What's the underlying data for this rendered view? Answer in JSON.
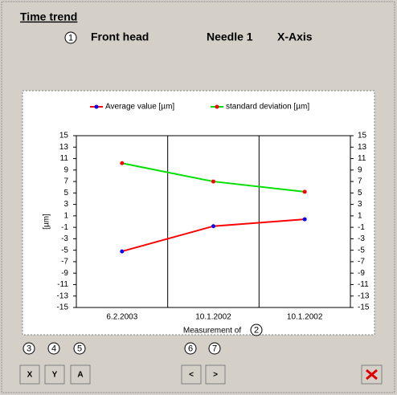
{
  "header": {
    "title": "Time trend",
    "callout": "1",
    "head": "Front head",
    "needle": "Needle 1",
    "axis": "X-Axis"
  },
  "chart_data": {
    "type": "line",
    "ylabel": "[µm]",
    "xlabel": "Measurement of",
    "xlabel_callout": "2",
    "categories": [
      "6.2.2003",
      "10.1.2002",
      "10.1.2002"
    ],
    "series": [
      {
        "name": "Average value [µm]",
        "color": "#ff0000",
        "marker_color": "#0000ff",
        "values": [
          -5.2,
          -0.8,
          0.4
        ]
      },
      {
        "name": "standard deviation [µm]",
        "color": "#00e000",
        "marker_color": "#ff0000",
        "values": [
          10.2,
          7.0,
          5.2
        ]
      }
    ],
    "ylim": [
      -15,
      15
    ],
    "yticks": [
      -15,
      -13,
      -11,
      -9,
      -7,
      -5,
      -3,
      -1,
      1,
      3,
      5,
      7,
      9,
      11,
      13,
      15
    ]
  },
  "buttons": [
    {
      "label": "X",
      "callout": "3"
    },
    {
      "label": "Y",
      "callout": "4"
    },
    {
      "label": "A",
      "callout": "5"
    },
    {
      "label": "<",
      "callout": "6"
    },
    {
      "label": ">",
      "callout": "7"
    }
  ]
}
